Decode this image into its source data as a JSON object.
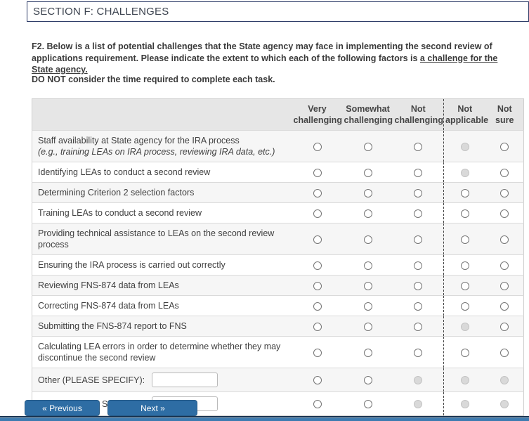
{
  "page": {
    "title": "SECTION F: CHALLENGES"
  },
  "question": {
    "lead": "F2. Below is a list of potential challenges that the State agency may face in implementing the second review of applications requirement. Please indicate the extent to which each of the following factors is ",
    "underlined": "a challenge for the State agency.",
    "note": "DO NOT consider the time required to complete each task."
  },
  "table": {
    "columns": [
      "Very challenging",
      "Somewhat challenging",
      "Not challenging",
      "Not applicable",
      "Not sure"
    ],
    "rows": [
      {
        "label": "Staff availability at State agency for the IRA process",
        "sublabel": "(e.g., training LEAs on IRA process, reviewing IRA data, etc.)",
        "states": [
          "enabled",
          "enabled",
          "enabled",
          "disabled",
          "enabled"
        ]
      },
      {
        "label": "Identifying LEAs to conduct a second review",
        "states": [
          "enabled",
          "enabled",
          "enabled",
          "disabled",
          "enabled"
        ]
      },
      {
        "label": "Determining Criterion 2 selection factors",
        "states": [
          "enabled",
          "enabled",
          "enabled",
          "enabled",
          "enabled"
        ]
      },
      {
        "label": "Training LEAs to conduct a second review",
        "states": [
          "enabled",
          "enabled",
          "enabled",
          "enabled",
          "enabled"
        ]
      },
      {
        "label": "Providing technical assistance to LEAs on the second review process",
        "states": [
          "enabled",
          "enabled",
          "enabled",
          "enabled",
          "enabled"
        ]
      },
      {
        "label": "Ensuring the IRA process is carried out correctly",
        "states": [
          "enabled",
          "enabled",
          "enabled",
          "enabled",
          "enabled"
        ]
      },
      {
        "label": "Reviewing FNS-874 data from LEAs",
        "states": [
          "enabled",
          "enabled",
          "enabled",
          "enabled",
          "enabled"
        ]
      },
      {
        "label": "Correcting FNS-874 data from LEAs",
        "states": [
          "enabled",
          "enabled",
          "enabled",
          "enabled",
          "enabled"
        ]
      },
      {
        "label": "Submitting the FNS-874 report to FNS",
        "states": [
          "enabled",
          "enabled",
          "enabled",
          "disabled",
          "enabled"
        ]
      },
      {
        "label": "Calculating LEA errors in order to determine whether they may discontinue the second review",
        "states": [
          "enabled",
          "enabled",
          "enabled",
          "enabled",
          "enabled"
        ]
      },
      {
        "label": "Other (PLEASE SPECIFY):",
        "input_value": "",
        "states": [
          "enabled",
          "enabled",
          "disabled",
          "disabled",
          "disabled"
        ]
      },
      {
        "label": "Other (PLEASE SPECIFY):",
        "input_value": "",
        "states": [
          "enabled",
          "enabled",
          "disabled",
          "disabled",
          "disabled"
        ]
      }
    ]
  },
  "nav": {
    "previous": "« Previous",
    "next": "Next »"
  },
  "colors": {
    "section_border": "#2b3a66",
    "button_bg": "#2e6da4",
    "footer_bar": "#3e7bb0",
    "header_row_bg": "#e6e6e6",
    "row_stripe": "#f6f6f6",
    "disabled_radio_fill": "#d9d9d9"
  }
}
